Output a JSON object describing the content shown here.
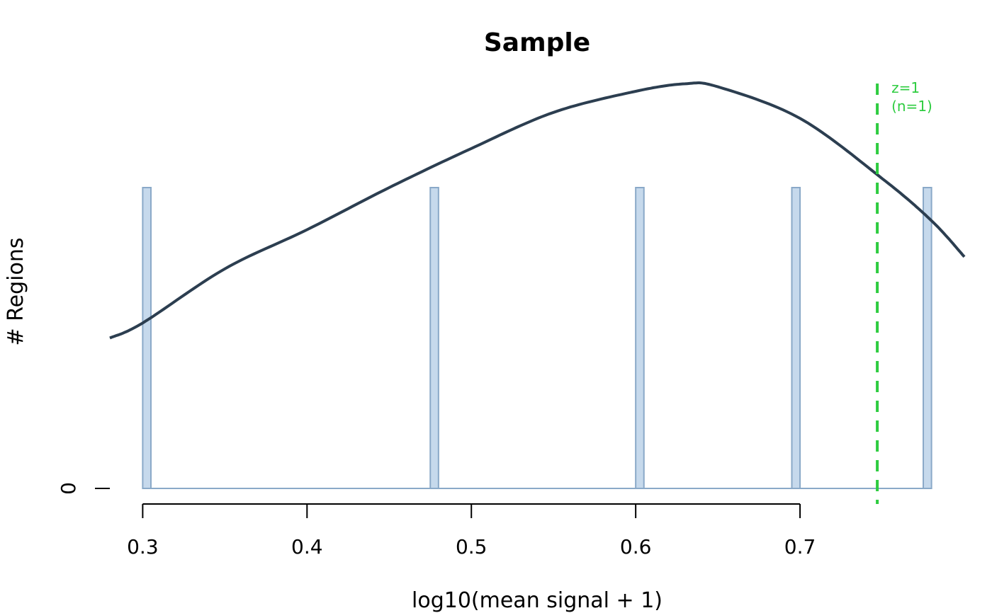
{
  "chart_data": {
    "type": "bar",
    "title": "Sample",
    "xlabel": "log10(mean signal + 1)",
    "ylabel": "# Regions",
    "xlim": [
      0.28,
      0.8
    ],
    "x_ticks": [
      0.3,
      0.4,
      0.5,
      0.6,
      0.7
    ],
    "x_tick_labels": [
      "0.3",
      "0.4",
      "0.5",
      "0.6",
      "0.7"
    ],
    "y_ticks": [
      0
    ],
    "y_tick_labels": [
      "0"
    ],
    "grid": false,
    "bars": [
      {
        "x0": 0.3,
        "x1": 0.305,
        "count": 1
      },
      {
        "x0": 0.475,
        "x1": 0.48,
        "count": 1
      },
      {
        "x0": 0.6,
        "x1": 0.605,
        "count": 1
      },
      {
        "x0": 0.695,
        "x1": 0.7,
        "count": 1
      },
      {
        "x0": 0.775,
        "x1": 0.78,
        "count": 1
      }
    ],
    "density_curve": {
      "x": [
        0.28,
        0.3,
        0.35,
        0.4,
        0.45,
        0.5,
        0.55,
        0.6,
        0.63,
        0.65,
        0.7,
        0.75,
        0.78,
        0.8
      ],
      "y": [
        0.5,
        0.55,
        0.73,
        0.86,
        1.0,
        1.13,
        1.25,
        1.32,
        1.345,
        1.335,
        1.23,
        1.03,
        0.89,
        0.77
      ]
    },
    "threshold": {
      "x": 0.747,
      "label_line1": "z=1",
      "label_line2": "(n=1)"
    },
    "colors": {
      "bar_fill": "#c6d9ec",
      "bar_stroke": "#8aa9c8",
      "curve": "#2c3e50",
      "threshold": "#2ecc40",
      "axis": "#000000"
    }
  }
}
